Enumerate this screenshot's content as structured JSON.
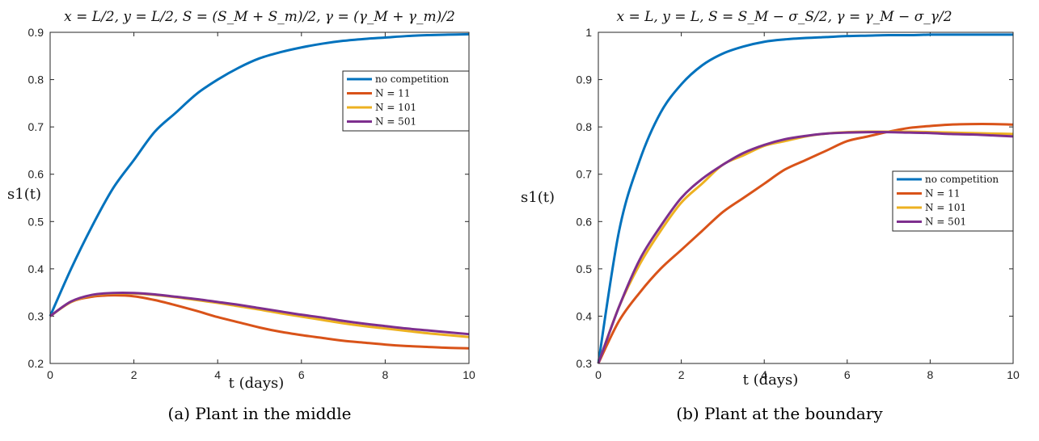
{
  "chart_data": [
    {
      "type": "line",
      "title": "x = L/2, y = L/2, S = (S_M + S_m)/2, γ = (γ_M + γ_m)/2",
      "xlabel": "t (days)",
      "ylabel": "s1(t)",
      "xlim": [
        0,
        10
      ],
      "ylim": [
        0.2,
        0.9
      ],
      "xticks": [
        0,
        2,
        4,
        6,
        8,
        10
      ],
      "yticks": [
        0.2,
        0.3,
        0.4,
        0.5,
        0.6,
        0.7,
        0.8,
        0.9
      ],
      "grid": false,
      "legend_position": "top-right",
      "x": [
        0,
        0.5,
        1,
        1.5,
        2,
        2.5,
        3,
        3.5,
        4,
        4.5,
        5,
        5.5,
        6,
        6.5,
        7,
        7.5,
        8,
        8.5,
        9,
        9.5,
        10
      ],
      "series": [
        {
          "name": "no competition",
          "color": "#0072BD",
          "values": [
            0.3,
            0.4,
            0.49,
            0.57,
            0.63,
            0.69,
            0.73,
            0.77,
            0.8,
            0.825,
            0.845,
            0.858,
            0.868,
            0.876,
            0.882,
            0.886,
            0.889,
            0.892,
            0.894,
            0.895,
            0.896
          ]
        },
        {
          "name": "N = 11",
          "color": "#D95319",
          "values": [
            0.3,
            0.33,
            0.341,
            0.344,
            0.342,
            0.334,
            0.323,
            0.311,
            0.298,
            0.287,
            0.276,
            0.267,
            0.26,
            0.254,
            0.248,
            0.244,
            0.24,
            0.237,
            0.235,
            0.233,
            0.232
          ]
        },
        {
          "name": "N = 101",
          "color": "#EDB120",
          "values": [
            0.3,
            0.33,
            0.344,
            0.348,
            0.348,
            0.345,
            0.34,
            0.334,
            0.328,
            0.321,
            0.314,
            0.306,
            0.299,
            0.292,
            0.285,
            0.279,
            0.274,
            0.269,
            0.264,
            0.26,
            0.256
          ]
        },
        {
          "name": "N = 501",
          "color": "#7E2F8E",
          "values": [
            0.3,
            0.331,
            0.345,
            0.349,
            0.349,
            0.346,
            0.341,
            0.336,
            0.33,
            0.324,
            0.317,
            0.31,
            0.303,
            0.297,
            0.29,
            0.284,
            0.279,
            0.274,
            0.27,
            0.266,
            0.262
          ]
        }
      ],
      "caption": "(a) Plant in the middle"
    },
    {
      "type": "line",
      "title": "x = L, y = L, S = S_M − σ_S/2, γ = γ_M − σ_γ/2",
      "xlabel": "t (days)",
      "ylabel": "s1(t)",
      "xlim": [
        0,
        10
      ],
      "ylim": [
        0.3,
        1.0
      ],
      "xticks": [
        0,
        2,
        4,
        6,
        8,
        10
      ],
      "yticks": [
        0.3,
        0.4,
        0.5,
        0.6,
        0.7,
        0.8,
        0.9,
        1.0
      ],
      "ytick_labels": [
        "0.3",
        "0.4",
        "0.5",
        "0.6",
        "0.7",
        "0.8",
        "0.9",
        "1"
      ],
      "grid": false,
      "legend_position": "right",
      "x": [
        0,
        0.5,
        1,
        1.5,
        2,
        2.5,
        3,
        3.5,
        4,
        4.5,
        5,
        5.5,
        6,
        6.5,
        7,
        7.5,
        8,
        8.5,
        9,
        9.5,
        10
      ],
      "series": [
        {
          "name": "no competition",
          "color": "#0072BD",
          "values": [
            0.3,
            0.58,
            0.73,
            0.83,
            0.89,
            0.93,
            0.955,
            0.97,
            0.98,
            0.985,
            0.988,
            0.99,
            0.992,
            0.993,
            0.994,
            0.994,
            0.995,
            0.995,
            0.995,
            0.995,
            0.995
          ]
        },
        {
          "name": "N = 11",
          "color": "#D95319",
          "values": [
            0.3,
            0.39,
            0.45,
            0.5,
            0.54,
            0.58,
            0.62,
            0.65,
            0.68,
            0.71,
            0.73,
            0.75,
            0.77,
            0.78,
            0.79,
            0.798,
            0.802,
            0.805,
            0.806,
            0.806,
            0.805
          ]
        },
        {
          "name": "N = 101",
          "color": "#EDB120",
          "values": [
            0.3,
            0.42,
            0.51,
            0.58,
            0.64,
            0.68,
            0.72,
            0.74,
            0.76,
            0.77,
            0.78,
            0.786,
            0.789,
            0.79,
            0.79,
            0.79,
            0.789,
            0.788,
            0.787,
            0.786,
            0.785
          ]
        },
        {
          "name": "N = 501",
          "color": "#7E2F8E",
          "values": [
            0.3,
            0.42,
            0.52,
            0.59,
            0.65,
            0.69,
            0.72,
            0.745,
            0.762,
            0.774,
            0.781,
            0.786,
            0.788,
            0.789,
            0.789,
            0.788,
            0.787,
            0.785,
            0.784,
            0.782,
            0.78
          ]
        }
      ],
      "caption": "(b) Plant at the boundary"
    }
  ]
}
